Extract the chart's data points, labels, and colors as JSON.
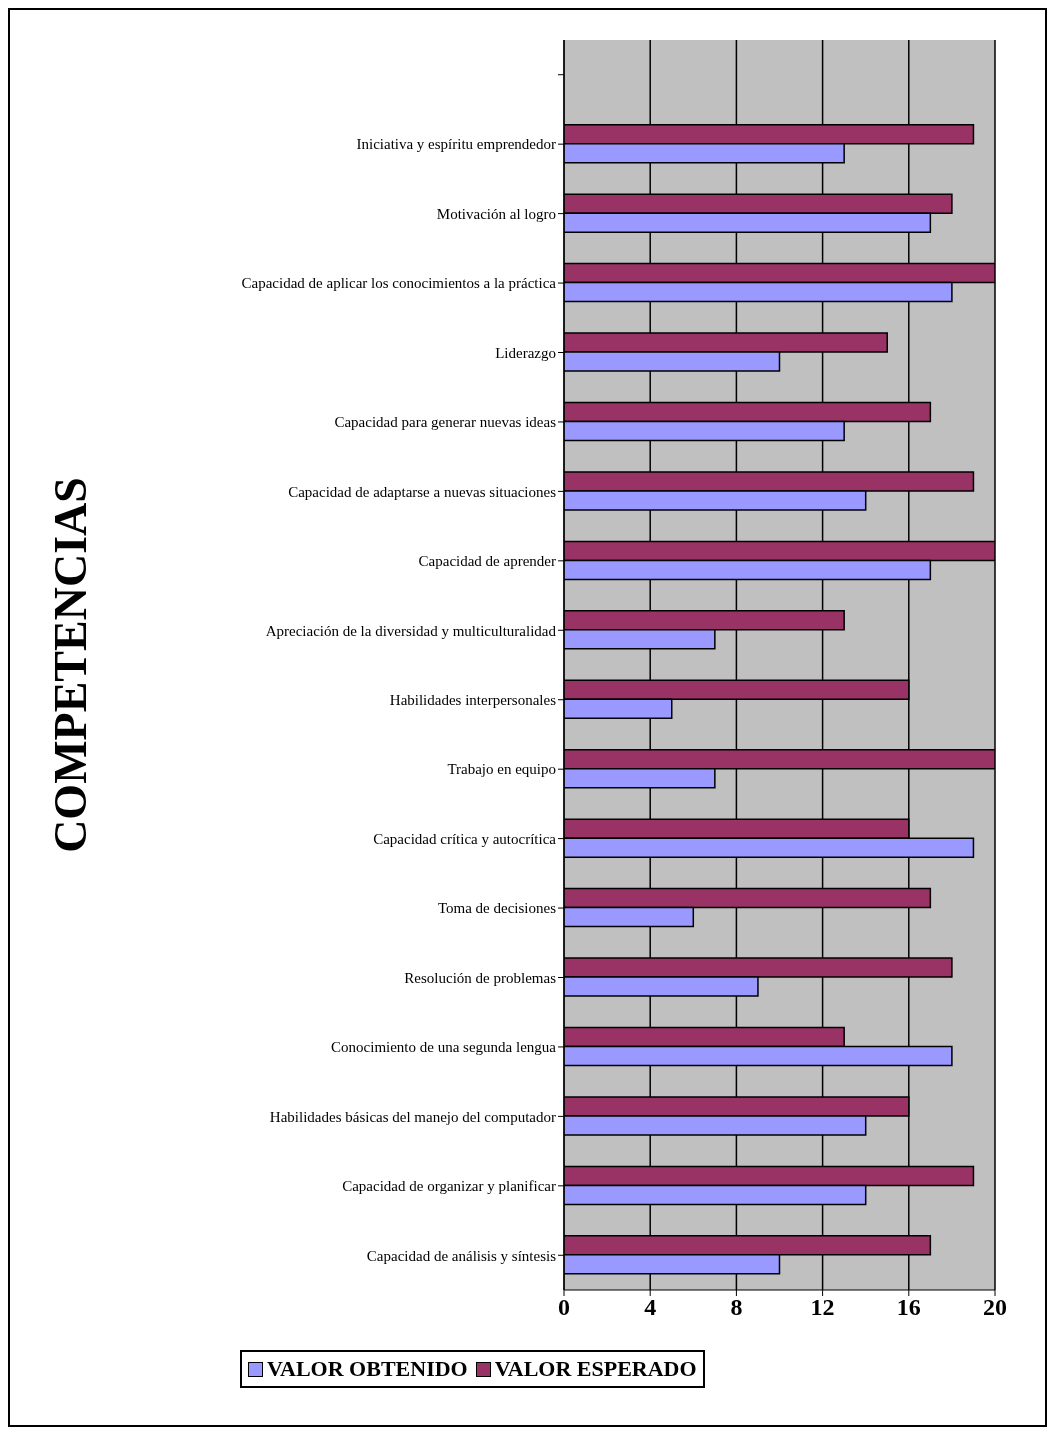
{
  "chart_data": {
    "type": "bar",
    "orientation": "horizontal",
    "ylabel": "COMPETENCIAS",
    "categories": [
      null,
      "Iniciativa y espíritu emprendedor",
      "Motivación al logro",
      "Capacidad de aplicar los conocimientos a la práctica",
      "Liderazgo",
      "Capacidad para generar nuevas ideas",
      "Capacidad de adaptarse a nuevas situaciones",
      "Capacidad de aprender",
      "Apreciación de la diversidad y multiculturalidad",
      "Habilidades interpersonales",
      "Trabajo en equipo",
      "Capacidad crítica y autocrítica",
      "Toma de decisiones",
      "Resolución de problemas",
      "Conocimiento de una segunda lengua",
      "Habilidades básicas del manejo del computador",
      "Capacidad de organizar y planificar",
      "Capacidad de análisis y síntesis"
    ],
    "series": [
      {
        "name": "VALOR OBTENIDO",
        "color": "#9999ff",
        "values": [
          null,
          13,
          17,
          18,
          10,
          13,
          14,
          17,
          7,
          5,
          7,
          19,
          6,
          9,
          18,
          14,
          14,
          10
        ]
      },
      {
        "name": "VALOR ESPERADO",
        "color": "#993366",
        "values": [
          null,
          19,
          18,
          20,
          15,
          17,
          19,
          20,
          13,
          16,
          20,
          16,
          17,
          18,
          13,
          16,
          19,
          17
        ]
      }
    ],
    "xlim": [
      0,
      20
    ],
    "xticks": [
      0,
      4,
      8,
      12,
      16,
      20
    ],
    "grid": "x",
    "legend": "bottom"
  }
}
